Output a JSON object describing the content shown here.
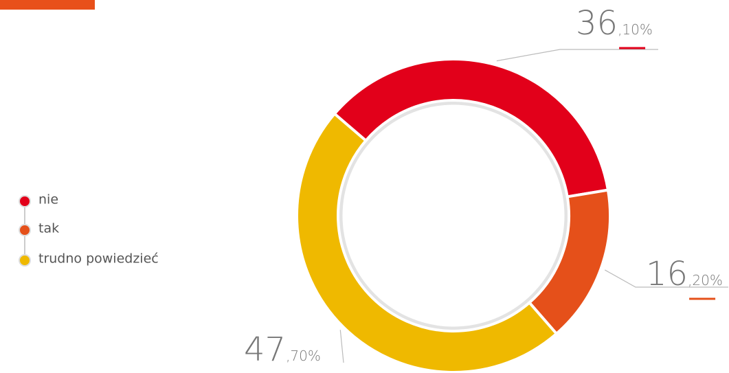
{
  "chart_data": {
    "type": "donut",
    "categories": [
      "nie",
      "tak",
      "trudno powiedzieć"
    ],
    "values": [
      36.1,
      16.2,
      47.7
    ],
    "value_labels": [
      "36,10%",
      "16,20%",
      "47,70%"
    ],
    "colors": [
      "#e2001a",
      "#e5501a",
      "#efb900"
    ]
  }
}
